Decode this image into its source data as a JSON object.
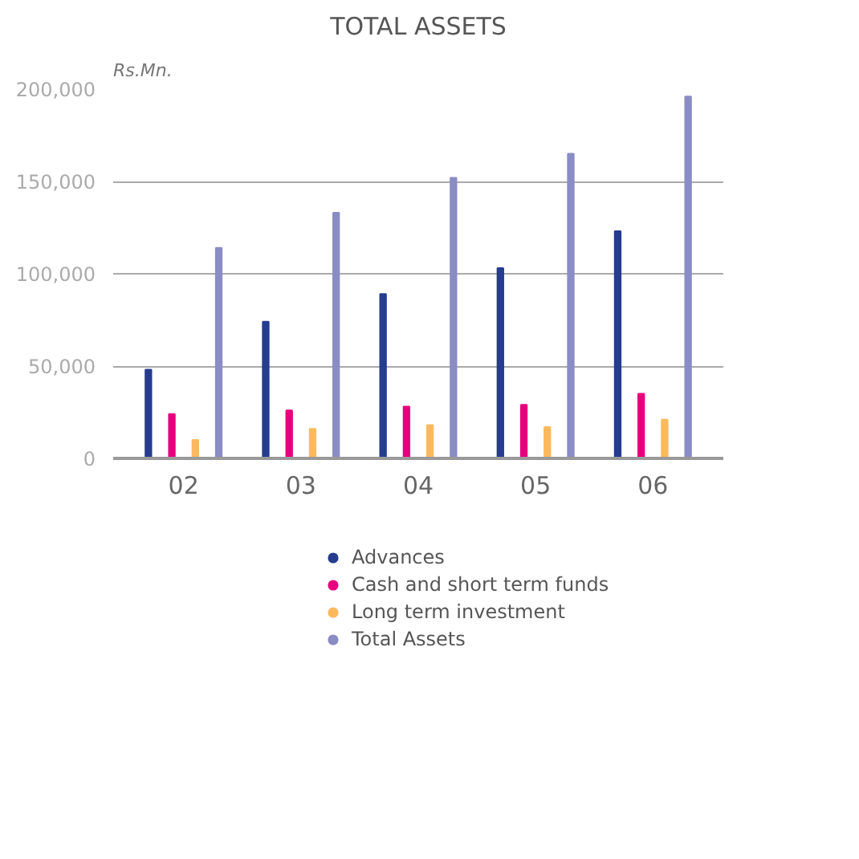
{
  "chart_data": {
    "type": "bar",
    "title": "TOTAL ASSETS",
    "ylabel": "Rs.Mn.",
    "categories": [
      "02",
      "03",
      "04",
      "05",
      "06"
    ],
    "series": [
      {
        "name": "Advances",
        "color": "#253c8f",
        "values": [
          48000,
          74000,
          89000,
          103000,
          123000
        ]
      },
      {
        "name": "Cash and short term funds",
        "color": "#e6007e",
        "values": [
          24000,
          26000,
          28000,
          29000,
          35000
        ]
      },
      {
        "name": "Long term investment",
        "color": "#fbb95e",
        "values": [
          10000,
          16000,
          18000,
          17000,
          21000
        ]
      },
      {
        "name": "Total Assets",
        "color": "#8a8cc4",
        "values": [
          114000,
          133000,
          152000,
          165000,
          196000
        ]
      }
    ],
    "ylim": [
      0,
      200000
    ],
    "yticks": [
      {
        "value": 0,
        "label": "0"
      },
      {
        "value": 50000,
        "label": "50,000"
      },
      {
        "value": 100000,
        "label": "100,000"
      },
      {
        "value": 150000,
        "label": "150,000"
      },
      {
        "value": 200000,
        "label": "200,000"
      }
    ],
    "grid": "y",
    "legend": "bottom"
  }
}
